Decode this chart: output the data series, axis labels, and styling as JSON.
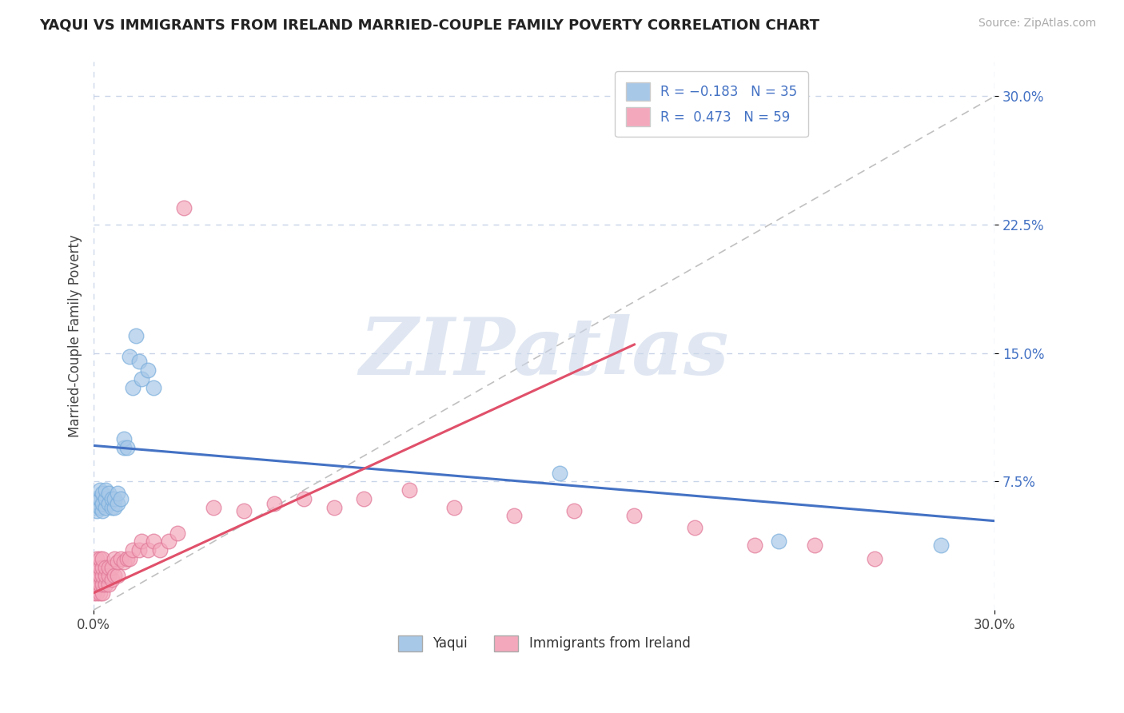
{
  "title": "YAQUI VS IMMIGRANTS FROM IRELAND MARRIED-COUPLE FAMILY POVERTY CORRELATION CHART",
  "source": "Source: ZipAtlas.com",
  "ylabel": "Married-Couple Family Poverty",
  "right_yticks": [
    "30.0%",
    "22.5%",
    "15.0%",
    "7.5%"
  ],
  "right_ytick_vals": [
    0.3,
    0.225,
    0.15,
    0.075
  ],
  "xlim": [
    0.0,
    0.3
  ],
  "ylim": [
    0.0,
    0.32
  ],
  "yaqui_color": "#a8c8e8",
  "ireland_color": "#f4a8bc",
  "yaqui_edge": "#7aaedc",
  "ireland_edge": "#e07898",
  "yaqui_scatter": [
    [
      0.0,
      0.06
    ],
    [
      0.0,
      0.065
    ],
    [
      0.001,
      0.058
    ],
    [
      0.001,
      0.063
    ],
    [
      0.002,
      0.06
    ],
    [
      0.002,
      0.065
    ],
    [
      0.002,
      0.07
    ],
    [
      0.003,
      0.058
    ],
    [
      0.003,
      0.062
    ],
    [
      0.003,
      0.068
    ],
    [
      0.004,
      0.06
    ],
    [
      0.004,
      0.065
    ],
    [
      0.004,
      0.07
    ],
    [
      0.005,
      0.062
    ],
    [
      0.005,
      0.068
    ],
    [
      0.006,
      0.06
    ],
    [
      0.006,
      0.065
    ],
    [
      0.007,
      0.06
    ],
    [
      0.007,
      0.065
    ],
    [
      0.008,
      0.062
    ],
    [
      0.008,
      0.068
    ],
    [
      0.009,
      0.065
    ],
    [
      0.01,
      0.095
    ],
    [
      0.01,
      0.1
    ],
    [
      0.011,
      0.095
    ],
    [
      0.012,
      0.148
    ],
    [
      0.013,
      0.13
    ],
    [
      0.014,
      0.16
    ],
    [
      0.015,
      0.145
    ],
    [
      0.016,
      0.135
    ],
    [
      0.018,
      0.14
    ],
    [
      0.02,
      0.13
    ],
    [
      0.155,
      0.08
    ],
    [
      0.228,
      0.04
    ],
    [
      0.282,
      0.038
    ]
  ],
  "ireland_scatter": [
    [
      0.0,
      0.01
    ],
    [
      0.0,
      0.015
    ],
    [
      0.0,
      0.02
    ],
    [
      0.0,
      0.025
    ],
    [
      0.001,
      0.01
    ],
    [
      0.001,
      0.015
    ],
    [
      0.001,
      0.02
    ],
    [
      0.001,
      0.025
    ],
    [
      0.001,
      0.03
    ],
    [
      0.002,
      0.01
    ],
    [
      0.002,
      0.015
    ],
    [
      0.002,
      0.02
    ],
    [
      0.002,
      0.025
    ],
    [
      0.002,
      0.03
    ],
    [
      0.003,
      0.01
    ],
    [
      0.003,
      0.015
    ],
    [
      0.003,
      0.02
    ],
    [
      0.003,
      0.025
    ],
    [
      0.003,
      0.03
    ],
    [
      0.004,
      0.015
    ],
    [
      0.004,
      0.02
    ],
    [
      0.004,
      0.025
    ],
    [
      0.005,
      0.015
    ],
    [
      0.005,
      0.02
    ],
    [
      0.005,
      0.025
    ],
    [
      0.006,
      0.018
    ],
    [
      0.006,
      0.025
    ],
    [
      0.007,
      0.02
    ],
    [
      0.007,
      0.03
    ],
    [
      0.008,
      0.02
    ],
    [
      0.008,
      0.028
    ],
    [
      0.009,
      0.03
    ],
    [
      0.01,
      0.028
    ],
    [
      0.011,
      0.03
    ],
    [
      0.012,
      0.03
    ],
    [
      0.013,
      0.035
    ],
    [
      0.015,
      0.035
    ],
    [
      0.016,
      0.04
    ],
    [
      0.018,
      0.035
    ],
    [
      0.02,
      0.04
    ],
    [
      0.022,
      0.035
    ],
    [
      0.025,
      0.04
    ],
    [
      0.028,
      0.045
    ],
    [
      0.03,
      0.235
    ],
    [
      0.04,
      0.06
    ],
    [
      0.05,
      0.058
    ],
    [
      0.06,
      0.062
    ],
    [
      0.07,
      0.065
    ],
    [
      0.08,
      0.06
    ],
    [
      0.09,
      0.065
    ],
    [
      0.105,
      0.07
    ],
    [
      0.12,
      0.06
    ],
    [
      0.14,
      0.055
    ],
    [
      0.16,
      0.058
    ],
    [
      0.18,
      0.055
    ],
    [
      0.2,
      0.048
    ],
    [
      0.22,
      0.038
    ],
    [
      0.24,
      0.038
    ],
    [
      0.26,
      0.03
    ]
  ],
  "yaqui_line_color": "#4472c4",
  "ireland_line_color": "#e0506a",
  "watermark_text": "ZIPatlas",
  "background_color": "#ffffff",
  "grid_color": "#c8d4e8",
  "title_color": "#222222",
  "yaqui_line_x": [
    0.0,
    0.3
  ],
  "yaqui_line_y": [
    0.096,
    0.052
  ],
  "ireland_line_x": [
    0.0,
    0.18
  ],
  "ireland_line_y": [
    0.01,
    0.155
  ]
}
